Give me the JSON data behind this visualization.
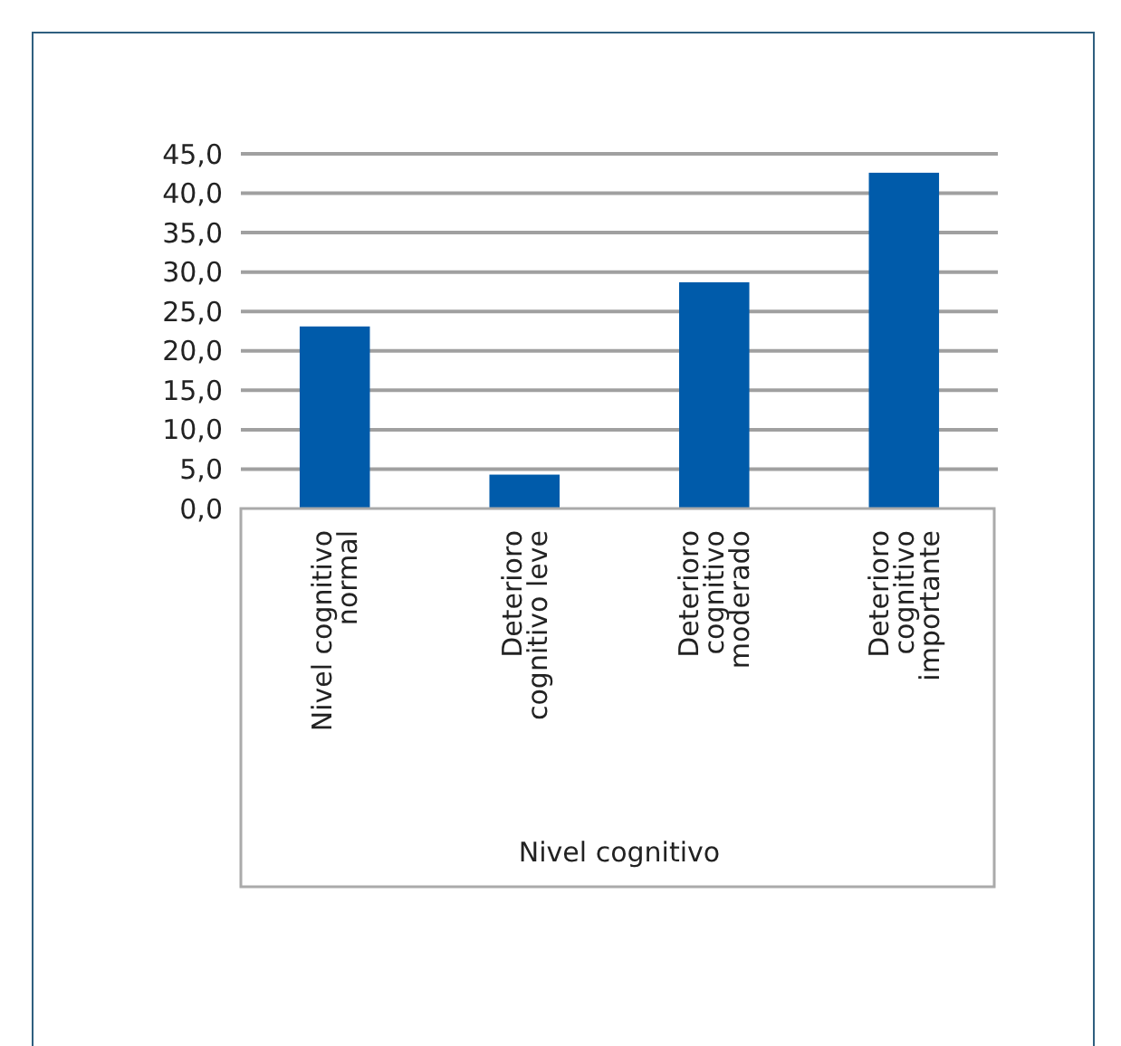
{
  "chart_data": {
    "type": "bar",
    "xlabel": "Nivel cognitivo",
    "categories": [
      "Nivel cognitivo normal",
      "Deterioro cognitivo leve",
      "Deterioro cognitivo moderado",
      "Deterioro cognitivo importante"
    ],
    "values": [
      23.1,
      4.3,
      28.7,
      42.6
    ],
    "color": "#005baa",
    "ylim": [
      0,
      45
    ],
    "yticks": [
      {
        "value": 0,
        "label": "0,0"
      },
      {
        "value": 5,
        "label": "5,0"
      },
      {
        "value": 10,
        "label": "10,0"
      },
      {
        "value": 15,
        "label": "15,0"
      },
      {
        "value": 20,
        "label": "20,0"
      },
      {
        "value": 25,
        "label": "25,0"
      },
      {
        "value": 30,
        "label": "30,0"
      },
      {
        "value": 35,
        "label": "35,0"
      },
      {
        "value": 40,
        "label": "40,0"
      },
      {
        "value": 45,
        "label": "45,0"
      }
    ],
    "grid": true
  }
}
